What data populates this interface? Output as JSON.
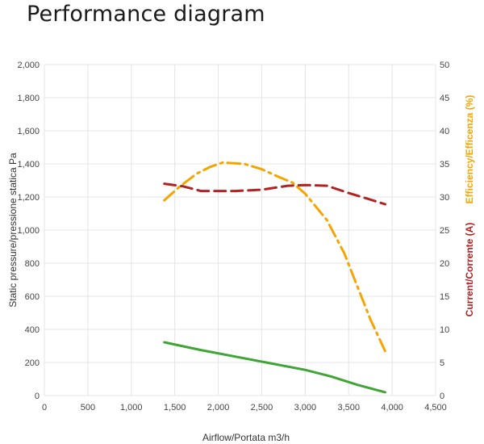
{
  "page": {
    "title": "Performance diagram"
  },
  "colors": {
    "pressure": "#3fa535",
    "efficiency": "#f5a500",
    "current": "#b22222",
    "grid": "#e4e4e4"
  },
  "chart_data": {
    "type": "line",
    "title": "Performance diagram",
    "xlabel": "Airflow/Portata m3/h",
    "ylabel": "Static pressure/pressione statica Pa",
    "y2label_efficiency": "Efficiency/Efficenza (%)",
    "y2label_current": "Current/Corrente (A)",
    "xlim": [
      0,
      4500
    ],
    "ylim": [
      0,
      2000
    ],
    "y2lim": [
      0,
      50
    ],
    "grid": true,
    "x_ticks": [
      0,
      500,
      1000,
      1500,
      2000,
      2500,
      3000,
      3500,
      4000,
      4500
    ],
    "x_tick_labels": [
      "0",
      "500",
      "1,000",
      "1,500",
      "2,000",
      "2,500",
      "3,000",
      "3,500",
      "4,000",
      "4,500"
    ],
    "y_ticks": [
      0,
      200,
      400,
      600,
      800,
      1000,
      1200,
      1400,
      1600,
      1800,
      2000
    ],
    "y_tick_labels": [
      "0",
      "200",
      "400",
      "600",
      "800",
      "1,000",
      "1,200",
      "1,400",
      "1,600",
      "1,800",
      "2,000"
    ],
    "y2_ticks": [
      0,
      5,
      10,
      15,
      20,
      25,
      30,
      35,
      40,
      45,
      50
    ],
    "y2_tick_labels": [
      "0",
      "5",
      "10",
      "15",
      "20",
      "25",
      "30",
      "35",
      "40",
      "45",
      "50"
    ],
    "series": [
      {
        "axis": "left",
        "style": "solid",
        "color": "#3fa535",
        "x": [
          1380,
          1800,
          2200,
          2600,
          3000,
          3300,
          3600,
          3920
        ],
        "y": [
          322,
          275,
          235,
          195,
          155,
          115,
          65,
          20
        ]
      },
      {
        "axis": "right",
        "style": "dashdot",
        "color": "#f5a500",
        "x": [
          1380,
          1550,
          1750,
          1900,
          2050,
          2300,
          2500,
          2700,
          2850,
          3000,
          3250,
          3450,
          3600,
          3750,
          3920
        ],
        "y": [
          29.5,
          31.5,
          33.5,
          34.5,
          35.2,
          35.0,
          34.2,
          33.0,
          32.2,
          30.5,
          26.5,
          21.5,
          16.5,
          11.5,
          6.7
        ]
      },
      {
        "axis": "right",
        "style": "dashed",
        "color": "#b22222",
        "x": [
          1380,
          1600,
          1800,
          2000,
          2200,
          2500,
          2800,
          3000,
          3250,
          3500,
          3700,
          3920
        ],
        "y": [
          32.0,
          31.6,
          30.9,
          30.9,
          30.9,
          31.1,
          31.7,
          31.8,
          31.7,
          30.6,
          29.8,
          28.9
        ]
      }
    ]
  }
}
